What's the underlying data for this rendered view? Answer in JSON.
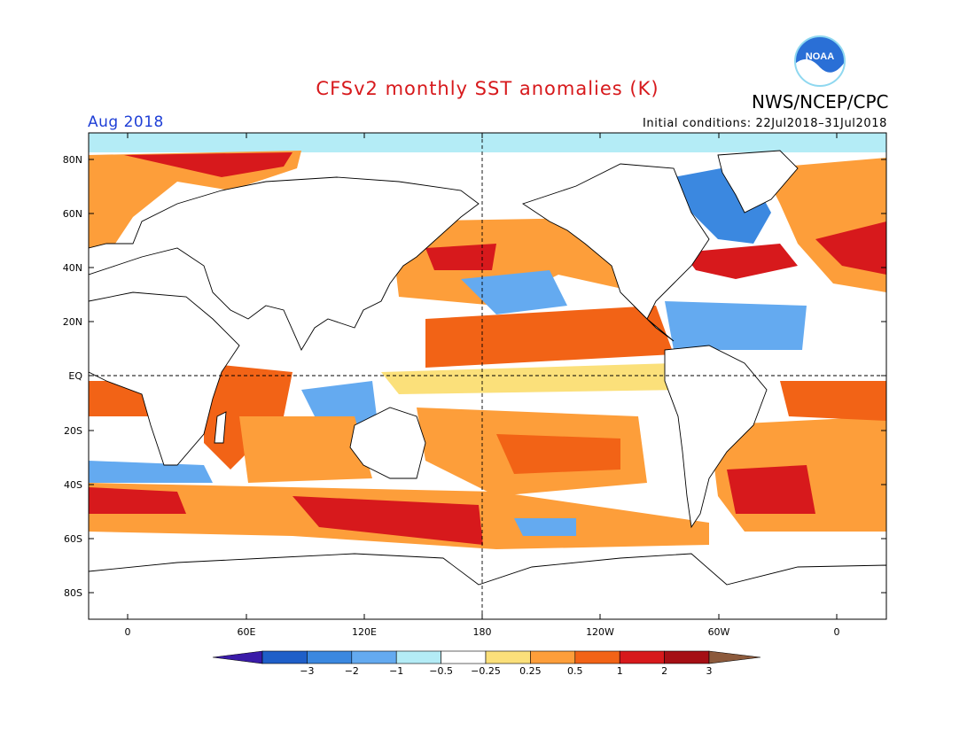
{
  "header": {
    "title": "CFSv2 monthly SST anomalies (K)",
    "organization": "NWS/NCEP/CPC",
    "logo_text": "NOAA",
    "month": "Aug 2018",
    "initial_conditions": "Initial conditions: 22Jul2018–31Jul2018"
  },
  "map": {
    "lat_labels": [
      "80N",
      "60N",
      "40N",
      "20N",
      "EQ",
      "20S",
      "40S",
      "60S",
      "80S"
    ],
    "lon_labels": [
      "0",
      "60E",
      "120E",
      "180",
      "120W",
      "60W",
      "0"
    ]
  },
  "colorbar": {
    "labels": [
      "−3",
      "−2",
      "−1",
      "−0.5",
      "−0.25",
      "0.25",
      "0.5",
      "1",
      "2",
      "3"
    ],
    "colors": [
      "#3a1ba8",
      "#1f5fc8",
      "#3b88e0",
      "#64aaf0",
      "#b4ecf6",
      "#ffffff",
      "#fbe07a",
      "#fd9e3a",
      "#f26316",
      "#d7191c",
      "#a50f15",
      "#8c5a3c"
    ]
  },
  "colors": {
    "title": "#d7191c",
    "month": "#1f3fd6",
    "warm": "#f26316",
    "cool": "#3b88e0"
  }
}
